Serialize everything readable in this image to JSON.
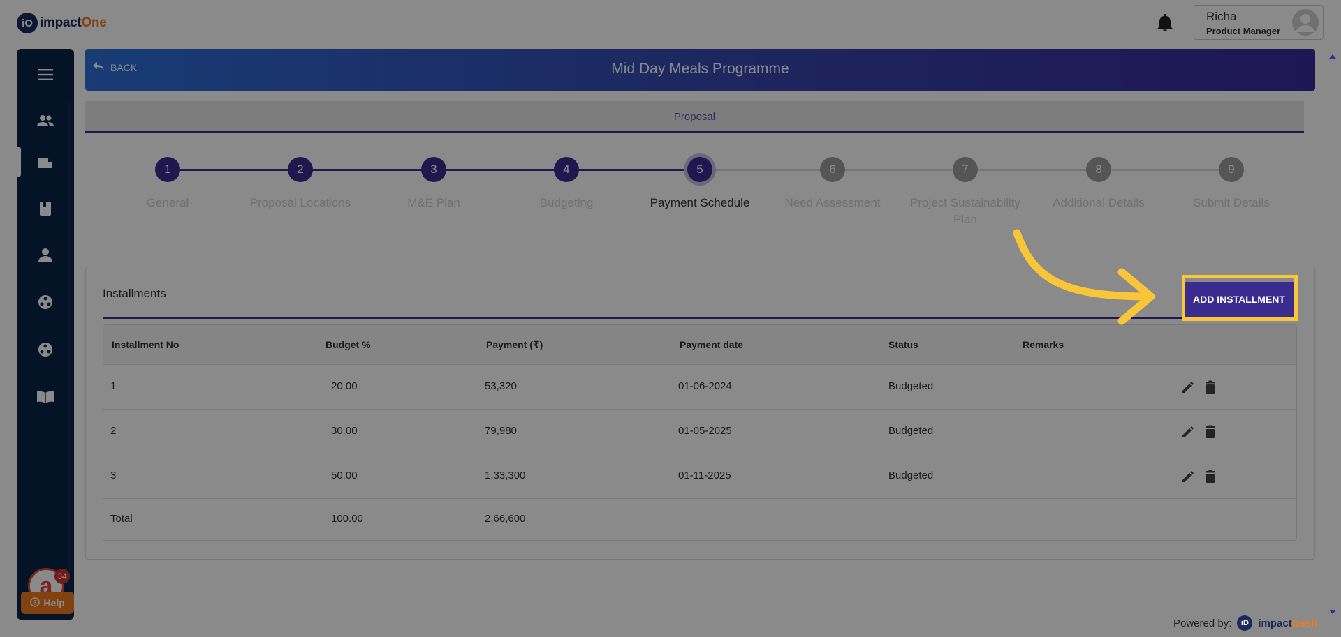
{
  "app": {
    "logo_prefix": "iO",
    "logo_name_main": "impact",
    "logo_name_accent": "One"
  },
  "user": {
    "name": "Richa",
    "role": "Product Manager"
  },
  "sidebar": {
    "icons": [
      "menu-icon",
      "users-icon",
      "folder-icon",
      "book-icon",
      "person-icon",
      "network-icon",
      "network-icon-2",
      "open-book-icon"
    ],
    "chat_badge": "34",
    "help_label": "Help"
  },
  "header": {
    "back_label": "BACK",
    "title": "Mid Day Meals Programme"
  },
  "tabs": {
    "active": "Proposal"
  },
  "stepper": {
    "steps": [
      {
        "number": "1",
        "label": "General",
        "state": "done"
      },
      {
        "number": "2",
        "label": "Proposal Locations",
        "state": "done"
      },
      {
        "number": "3",
        "label": "M&E Plan",
        "state": "done"
      },
      {
        "number": "4",
        "label": "Budgeting",
        "state": "done"
      },
      {
        "number": "5",
        "label": "Payment Schedule",
        "state": "active"
      },
      {
        "number": "6",
        "label": "Need Assessment",
        "state": "pending"
      },
      {
        "number": "7",
        "label": "Project Sustainability Plan",
        "state": "pending"
      },
      {
        "number": "8",
        "label": "Additional Details",
        "state": "pending"
      },
      {
        "number": "9",
        "label": "Submit Details",
        "state": "pending"
      }
    ]
  },
  "installments": {
    "title": "Installments",
    "add_button_label": "ADD INSTALLMENT",
    "columns": [
      "Installment No",
      "Budget %",
      "Payment (₹)",
      "Payment date",
      "Status",
      "Remarks"
    ],
    "rows": [
      {
        "no": "1",
        "budget": "20.00",
        "payment": "53,320",
        "date": "01-06-2024",
        "status": "Budgeted",
        "remarks": ""
      },
      {
        "no": "2",
        "budget": "30.00",
        "payment": "79,980",
        "date": "01-05-2025",
        "status": "Budgeted",
        "remarks": ""
      },
      {
        "no": "3",
        "budget": "50.00",
        "payment": "1,33,300",
        "date": "01-11-2025",
        "status": "Budgeted",
        "remarks": ""
      }
    ],
    "total": {
      "label": "Total",
      "budget": "100.00",
      "payment": "2,66,600"
    }
  },
  "footer": {
    "powered_by": "Powered by:",
    "brand_prefix": "iD",
    "brand_main": "impact",
    "brand_accent": "Dash"
  },
  "colors": {
    "primary": "#3a2c8f",
    "sidebar": "#0b2348",
    "accent_orange": "#f07a1c",
    "highlight_yellow": "#f9c63a"
  }
}
